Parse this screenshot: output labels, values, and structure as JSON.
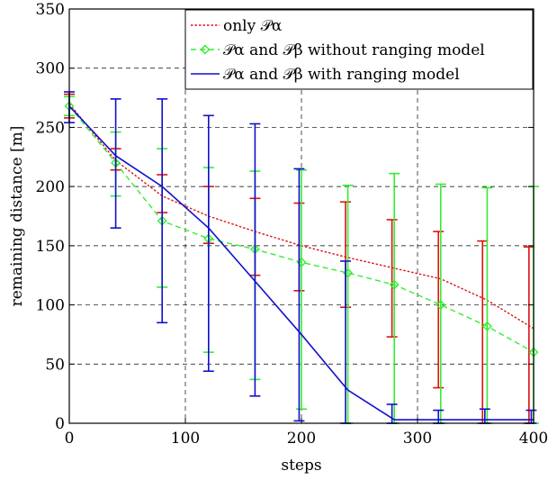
{
  "chart_data": {
    "type": "line",
    "title": "",
    "xlabel": "steps",
    "ylabel": "remaining distance [m]",
    "xlim": [
      0,
      400
    ],
    "ylim": [
      0,
      350
    ],
    "xticks": [
      0,
      100,
      200,
      300,
      400
    ],
    "yticks": [
      0,
      50,
      100,
      150,
      200,
      250,
      300,
      350
    ],
    "grid": true,
    "legend_position": "top-right",
    "series": [
      {
        "name": "only 𝒫α",
        "color": "#e01010",
        "line_style": "dotted",
        "marker": "none",
        "x": [
          0,
          40,
          80,
          120,
          160,
          200,
          240,
          280,
          320,
          360,
          400
        ],
        "y": [
          270,
          222,
          192,
          175,
          162,
          150,
          140,
          131,
          122,
          104,
          80
        ],
        "error_x": [
          0,
          40,
          80,
          120,
          160,
          198,
          238,
          278,
          318,
          356,
          396
        ],
        "error_low": [
          258,
          214,
          178,
          152,
          125,
          112,
          98,
          73,
          30,
          0,
          0
        ],
        "error_high": [
          278,
          232,
          210,
          200,
          190,
          186,
          187,
          172,
          162,
          154,
          149
        ]
      },
      {
        "name": "𝒫α and 𝒫β without ranging model",
        "color": "#33ee33",
        "line_style": "dashed",
        "marker": "diamond",
        "x": [
          0,
          40,
          80,
          120,
          160,
          200,
          240,
          280,
          320,
          360,
          400
        ],
        "y": [
          268,
          220,
          171,
          156,
          147,
          136,
          127,
          117,
          100,
          82,
          60
        ],
        "error_x": [
          0,
          40,
          80,
          120,
          160,
          200,
          240,
          280,
          320,
          360,
          400
        ],
        "error_low": [
          260,
          192,
          115,
          60,
          37,
          12,
          0,
          0,
          0,
          0,
          0
        ],
        "error_high": [
          276,
          246,
          232,
          216,
          213,
          214,
          201,
          211,
          202,
          199,
          200
        ]
      },
      {
        "name": "𝒫α and 𝒫β with ranging model",
        "color": "#1010cc",
        "line_style": "solid",
        "marker": "none",
        "x": [
          0,
          40,
          80,
          120,
          160,
          200,
          240,
          280,
          320,
          360,
          400
        ],
        "y": [
          268,
          226,
          200,
          165,
          120,
          75,
          28,
          3,
          3,
          3,
          3
        ],
        "error_x": [
          0,
          40,
          80,
          120,
          160,
          198,
          238,
          278,
          318,
          358,
          398
        ],
        "error_low": [
          254,
          165,
          85,
          44,
          23,
          2,
          0,
          0,
          0,
          0,
          0
        ],
        "error_high": [
          280,
          274,
          274,
          260,
          253,
          215,
          137,
          16,
          11,
          12,
          11
        ]
      }
    ]
  }
}
